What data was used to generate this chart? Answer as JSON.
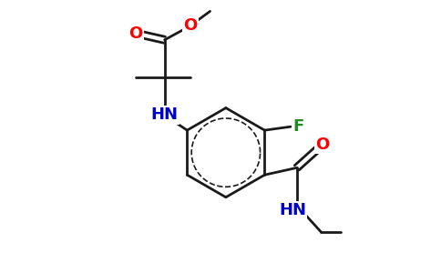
{
  "bg_color": "#ffffff",
  "bond_color": "#1a1a1a",
  "bond_width": 2.0,
  "figsize": [
    4.84,
    3.0
  ],
  "dpi": 100,
  "xlim": [
    0.0,
    10.0
  ],
  "ylim": [
    0.0,
    7.5
  ]
}
